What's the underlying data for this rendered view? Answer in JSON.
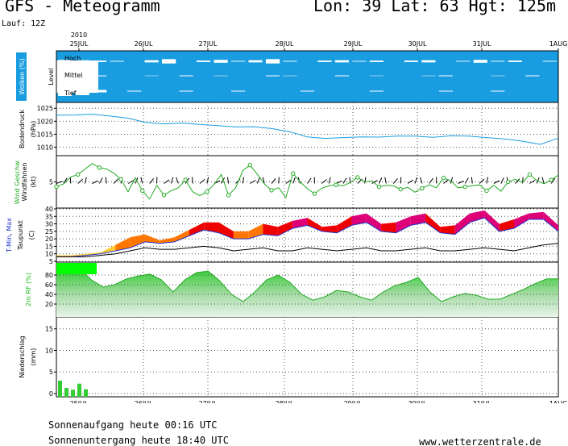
{
  "header": {
    "title": "GFS - Meteogramm",
    "location": "Lon: 39 Lat: 63 Hgt: 125m",
    "run": "Lauf: 12Z"
  },
  "footer": {
    "sunrise": "Sonnenaufgang heute 00:16 UTC",
    "sunset": "Sonnenuntergang heute 18:40 UTC",
    "site": "www.wetterzentrale.de"
  },
  "time_axis": {
    "year": "2010",
    "labels": [
      "25JUL",
      "26JUL",
      "27JUL",
      "28JUL",
      "29JUL",
      "30JUL",
      "31JUL",
      "1AUG"
    ]
  },
  "chart_data": [
    {
      "type": "heatmap",
      "ylabel": "Wolken (%)",
      "level_title": "Level",
      "levels": [
        "Hoch",
        "Mittel",
        "Tief"
      ],
      "colors": {
        "cloud": "#1a9de0",
        "clear": "#ffffff"
      },
      "note": "cloud cover per level, 0-100 %, 6-hourly steps",
      "hoch": [
        80,
        85,
        90,
        95,
        100,
        85,
        70,
        100,
        90,
        80,
        95,
        85,
        70,
        95,
        100,
        90,
        85,
        95,
        90,
        100,
        90,
        85,
        100,
        95,
        80,
        95,
        90,
        100,
        95
      ],
      "mittel": [
        30,
        35,
        90,
        100,
        100,
        95,
        100,
        90,
        100,
        95,
        100,
        100,
        90,
        95,
        100,
        100,
        90,
        100,
        95,
        100,
        100,
        95,
        90,
        100,
        100,
        95,
        100,
        90,
        100
      ],
      "tief": [
        40,
        50,
        85,
        100,
        95,
        100,
        100,
        95,
        100,
        100,
        95,
        100,
        100,
        100,
        95,
        100,
        100,
        100,
        95,
        100,
        100,
        100,
        95,
        100,
        100,
        95,
        100,
        100,
        100
      ]
    },
    {
      "type": "line",
      "ylabel": "Bodendruck",
      "unit": "(hPa)",
      "yticks": [
        1010,
        1015,
        1020,
        1025
      ],
      "ylim": [
        1008,
        1026
      ],
      "colors": {
        "line": "#1a9de0"
      },
      "values": [
        1022.3,
        1022.4,
        1022.7,
        1022.0,
        1021.2,
        1019.5,
        1019.0,
        1019.3,
        1018.8,
        1018.3,
        1017.8,
        1017.9,
        1017.2,
        1016.0,
        1014.0,
        1013.4,
        1013.7,
        1014.0,
        1013.9,
        1014.3,
        1014.3,
        1013.8,
        1014.4,
        1014.3,
        1013.7,
        1013.2,
        1012.3,
        1011.1,
        1013.5
      ]
    },
    {
      "type": "line",
      "ylabel": "Wind Geschw.",
      "ylabel2": "Windfahnen",
      "unit": "(kt)",
      "yticks": [
        5
      ],
      "ylim": [
        0,
        10
      ],
      "colors": {
        "speed": "#22aa22",
        "gust": "#000000"
      },
      "speed": [
        4.0,
        4.6,
        6.0,
        6.5,
        7.6,
        8.7,
        7.9,
        7.6,
        6.8,
        5.5,
        3.0,
        5.8,
        3.2,
        1.5,
        4.3,
        2.3,
        3.2,
        3.8,
        5.4,
        3.0,
        2.2,
        3.0,
        4.5,
        6.5,
        2.3,
        3.8,
        7.3,
        8.4,
        6.6,
        4.6,
        3.3,
        3.8,
        1.8,
        6.7,
        5.0,
        3.6,
        2.6,
        3.7,
        4.2,
        4.4,
        4.2,
        4.9,
        5.9,
        5.0,
        5.2,
        4.0,
        4.3,
        4.2,
        3.5,
        3.9,
        2.9,
        3.7,
        4.4,
        3.8,
        5.8,
        5.2,
        3.8,
        4.0,
        4.2,
        4.4,
        3.2,
        4.3,
        3.1,
        5.0,
        5.5,
        4.9,
        6.5,
        5.3,
        4.6,
        5.4,
        6.4
      ]
    },
    {
      "type": "area",
      "ylabel": "T-Min, Max",
      "ylabel2": "Taupunkt",
      "unit": "(C)",
      "yticks": [
        5,
        10,
        15,
        20,
        25,
        30,
        35,
        40
      ],
      "ylim": [
        5,
        40
      ],
      "colors": {
        "warm": "#ff7700",
        "hot": "#ee0000",
        "veryhot": "#dd0077",
        "cool": "#ffcc33",
        "dew": "#000000",
        "min": "#2233cc"
      },
      "tmax": [
        9,
        9,
        10,
        11,
        16,
        21,
        23,
        19,
        21,
        26,
        31,
        31,
        25,
        25,
        30,
        28,
        32,
        34,
        28,
        29,
        35,
        37,
        30,
        31,
        35,
        37,
        28,
        29,
        37,
        39,
        30,
        33,
        37,
        38,
        29
      ],
      "tmin": [
        8,
        8,
        9,
        10,
        12,
        14,
        18,
        17,
        18,
        22,
        26,
        24,
        20,
        20,
        23,
        22,
        27,
        29,
        25,
        24,
        29,
        31,
        25,
        24,
        29,
        31,
        24,
        23,
        31,
        34,
        25,
        27,
        33,
        33,
        25
      ],
      "dewpoint": [
        8,
        8,
        8,
        9,
        10,
        12,
        14,
        13,
        13,
        14,
        15,
        14,
        12,
        13,
        14,
        12,
        12,
        14,
        13,
        12,
        13,
        14,
        12,
        12,
        13,
        14,
        12,
        12,
        13,
        14,
        13,
        12,
        14,
        16,
        17
      ]
    },
    {
      "type": "area",
      "ylabel": "2m RF (%)",
      "yticks": [
        20,
        40,
        60,
        80
      ],
      "ylim": [
        0,
        100
      ],
      "colors": {
        "fill": "#22bb22",
        "top": "#00ff00"
      },
      "values": [
        93,
        93,
        93,
        70,
        55,
        60,
        72,
        78,
        82,
        70,
        45,
        70,
        85,
        88,
        68,
        40,
        25,
        45,
        70,
        80,
        65,
        40,
        28,
        35,
        48,
        45,
        35,
        28,
        45,
        58,
        65,
        75,
        45,
        25,
        35,
        42,
        38,
        30,
        30,
        40,
        50,
        62,
        72,
        72
      ]
    },
    {
      "type": "bar",
      "ylabel": "Niederschlag",
      "unit": "(mm)",
      "yticks": [
        0,
        5,
        10,
        15
      ],
      "ylim": [
        0,
        17
      ],
      "colors": {
        "bar": "#33cc33"
      },
      "values": [
        3.0,
        1.3,
        0.9,
        2.3,
        1.0,
        0,
        0,
        0,
        0,
        0,
        0,
        0,
        0,
        0,
        0,
        0,
        0,
        0,
        0,
        0,
        0,
        0,
        0,
        0,
        0,
        0,
        0,
        0,
        0
      ]
    }
  ]
}
